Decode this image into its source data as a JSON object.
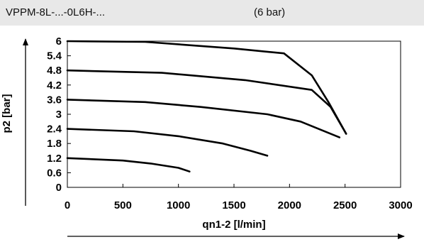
{
  "header": {
    "model": "VPPM-8L-...-0L6H-...",
    "pressure": "(6 bar)"
  },
  "chart_data": {
    "type": "line",
    "xlabel": "qn1-2 [l/min]",
    "ylabel": "p2 [bar]",
    "xlim": [
      0,
      3000
    ],
    "ylim": [
      0,
      6
    ],
    "xticks": [
      "0",
      "500",
      "1000",
      "1500",
      "2000",
      "2500",
      "3000"
    ],
    "yticks": [
      "0",
      "0.6",
      "1.2",
      "1.8",
      "2.4",
      "3",
      "3.6",
      "4.2",
      "4.8",
      "5.4",
      "6"
    ],
    "grid": false,
    "legend": "none",
    "series": [
      {
        "x": [
          0,
          500,
          750,
          1000,
          1100
        ],
        "y": [
          1.2,
          1.1,
          0.98,
          0.8,
          0.65
        ]
      },
      {
        "x": [
          0,
          600,
          1000,
          1400,
          1650,
          1800
        ],
        "y": [
          2.4,
          2.3,
          2.1,
          1.8,
          1.5,
          1.3
        ]
      },
      {
        "x": [
          0,
          700,
          1200,
          1800,
          2100,
          2450
        ],
        "y": [
          3.6,
          3.5,
          3.3,
          3.0,
          2.7,
          2.05
        ]
      },
      {
        "x": [
          0,
          850,
          1600,
          2200,
          2370,
          2510
        ],
        "y": [
          4.8,
          4.7,
          4.4,
          4.0,
          3.3,
          2.2
        ]
      },
      {
        "x": [
          0,
          700,
          1500,
          1950,
          2200,
          2350,
          2510
        ],
        "y": [
          6.0,
          5.97,
          5.7,
          5.5,
          4.6,
          3.5,
          2.2
        ]
      }
    ],
    "line_color": "#000000"
  }
}
